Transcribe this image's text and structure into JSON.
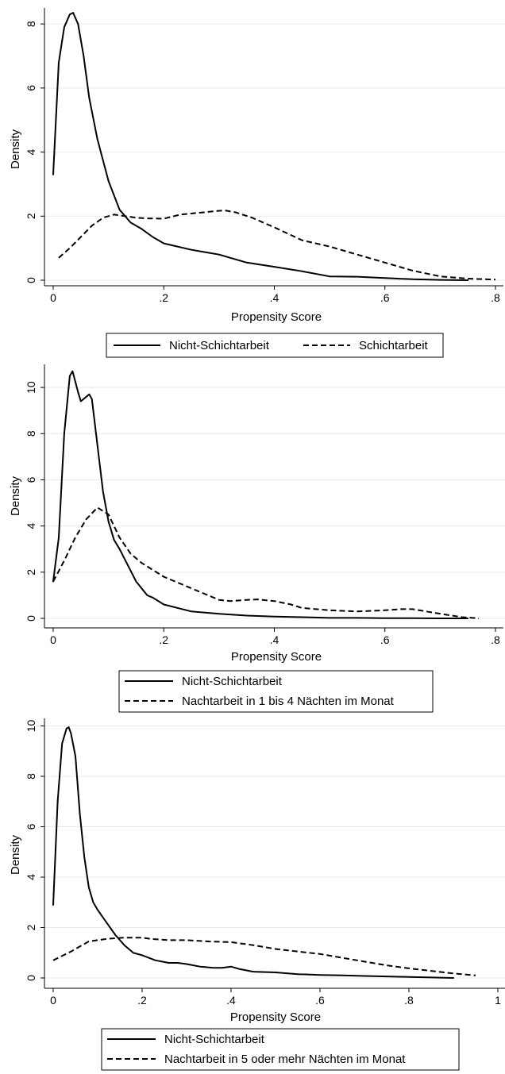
{
  "chart_data": [
    {
      "type": "line",
      "xlabel": "Propensity Score",
      "ylabel": "Density",
      "xlim": [
        0,
        0.8
      ],
      "ylim": [
        0,
        8.5
      ],
      "x_ticks": [
        0,
        0.2,
        0.4,
        0.6,
        0.8
      ],
      "x_tick_labels": [
        "0",
        ".2",
        ".4",
        ".6",
        ".8"
      ],
      "y_ticks": [
        0,
        2,
        4,
        6,
        8
      ],
      "y_tick_labels": [
        "0",
        "2",
        "4",
        "6",
        "8"
      ],
      "grid": true,
      "legend_position": "bottom",
      "legend_layout": "row",
      "series": [
        {
          "name": "Nicht-Schichtarbeit",
          "style": "solid",
          "x": [
            0.0,
            0.01,
            0.02,
            0.03,
            0.036,
            0.045,
            0.055,
            0.065,
            0.08,
            0.1,
            0.12,
            0.14,
            0.16,
            0.18,
            0.2,
            0.25,
            0.3,
            0.35,
            0.4,
            0.45,
            0.5,
            0.55,
            0.6,
            0.65,
            0.7,
            0.75
          ],
          "y": [
            3.3,
            6.8,
            7.9,
            8.3,
            8.35,
            8.0,
            7.0,
            5.7,
            4.4,
            3.1,
            2.2,
            1.8,
            1.6,
            1.35,
            1.15,
            0.95,
            0.8,
            0.55,
            0.42,
            0.28,
            0.12,
            0.11,
            0.07,
            0.03,
            0.01,
            0.0
          ]
        },
        {
          "name": "Schichtarbeit",
          "style": "dashed",
          "x": [
            0.01,
            0.03,
            0.05,
            0.07,
            0.09,
            0.11,
            0.13,
            0.15,
            0.17,
            0.2,
            0.23,
            0.26,
            0.29,
            0.31,
            0.33,
            0.36,
            0.4,
            0.45,
            0.5,
            0.55,
            0.6,
            0.65,
            0.7,
            0.75,
            0.8
          ],
          "y": [
            0.7,
            1.0,
            1.35,
            1.7,
            1.95,
            2.05,
            2.0,
            1.95,
            1.93,
            1.92,
            2.05,
            2.1,
            2.15,
            2.18,
            2.12,
            1.95,
            1.65,
            1.25,
            1.05,
            0.8,
            0.55,
            0.3,
            0.12,
            0.05,
            0.02
          ]
        }
      ]
    },
    {
      "type": "line",
      "xlabel": "Propensity Score",
      "ylabel": "Density",
      "xlim": [
        0,
        0.8
      ],
      "ylim": [
        0,
        11
      ],
      "x_ticks": [
        0,
        0.2,
        0.4,
        0.6,
        0.8
      ],
      "x_tick_labels": [
        "0",
        ".2",
        ".4",
        ".6",
        ".8"
      ],
      "y_ticks": [
        0,
        2,
        4,
        6,
        8,
        10
      ],
      "y_tick_labels": [
        "0",
        "2",
        "4",
        "6",
        "8",
        "10"
      ],
      "grid": true,
      "legend_position": "bottom",
      "legend_layout": "column",
      "series": [
        {
          "name": "Nicht-Schichtarbeit",
          "style": "solid",
          "x": [
            0.0,
            0.01,
            0.02,
            0.03,
            0.035,
            0.045,
            0.05,
            0.055,
            0.065,
            0.07,
            0.08,
            0.09,
            0.1,
            0.11,
            0.12,
            0.135,
            0.15,
            0.16,
            0.17,
            0.18,
            0.2,
            0.25,
            0.3,
            0.35,
            0.4,
            0.45,
            0.5,
            0.55,
            0.6,
            0.65,
            0.7,
            0.75
          ],
          "y": [
            1.6,
            3.5,
            8.0,
            10.5,
            10.7,
            9.8,
            9.4,
            9.5,
            9.7,
            9.5,
            7.5,
            5.5,
            4.2,
            3.4,
            3.0,
            2.3,
            1.6,
            1.3,
            1.0,
            0.9,
            0.6,
            0.3,
            0.2,
            0.12,
            0.08,
            0.05,
            0.02,
            0.02,
            0.01,
            0.01,
            0.0,
            0.0
          ]
        },
        {
          "name": "Nachtarbeit in 1 bis 4 Nächten im Monat",
          "style": "dashed",
          "x": [
            0.0,
            0.02,
            0.04,
            0.06,
            0.08,
            0.1,
            0.12,
            0.14,
            0.16,
            0.18,
            0.2,
            0.25,
            0.3,
            0.32,
            0.35,
            0.37,
            0.4,
            0.43,
            0.45,
            0.5,
            0.55,
            0.6,
            0.63,
            0.65,
            0.7,
            0.74,
            0.77
          ],
          "y": [
            1.6,
            2.5,
            3.5,
            4.3,
            4.8,
            4.5,
            3.5,
            2.8,
            2.4,
            2.1,
            1.8,
            1.3,
            0.8,
            0.75,
            0.8,
            0.82,
            0.75,
            0.6,
            0.45,
            0.35,
            0.3,
            0.35,
            0.4,
            0.4,
            0.2,
            0.05,
            0.0
          ]
        }
      ]
    },
    {
      "type": "line",
      "xlabel": "Propensity Score",
      "ylabel": "Density",
      "xlim": [
        0,
        1
      ],
      "ylim": [
        0,
        10.3
      ],
      "x_ticks": [
        0,
        0.2,
        0.4,
        0.6,
        0.8,
        1
      ],
      "x_tick_labels": [
        "0",
        ".2",
        ".4",
        ".6",
        ".8",
        "1"
      ],
      "y_ticks": [
        0,
        2,
        4,
        6,
        8,
        10
      ],
      "y_tick_labels": [
        "0",
        "2",
        "4",
        "6",
        "8",
        "10"
      ],
      "grid": true,
      "legend_position": "bottom",
      "legend_layout": "column",
      "series": [
        {
          "name": "Nicht-Schichtarbeit",
          "style": "solid",
          "x": [
            0.0,
            0.01,
            0.02,
            0.03,
            0.035,
            0.04,
            0.05,
            0.06,
            0.07,
            0.08,
            0.09,
            0.1,
            0.12,
            0.14,
            0.16,
            0.18,
            0.2,
            0.23,
            0.26,
            0.28,
            0.3,
            0.33,
            0.36,
            0.38,
            0.4,
            0.42,
            0.45,
            0.5,
            0.55,
            0.6,
            0.65,
            0.7,
            0.8,
            0.9
          ],
          "y": [
            2.9,
            7.0,
            9.3,
            9.9,
            9.95,
            9.7,
            8.8,
            6.5,
            4.8,
            3.6,
            3.0,
            2.7,
            2.2,
            1.7,
            1.3,
            1.0,
            0.9,
            0.7,
            0.6,
            0.6,
            0.55,
            0.45,
            0.4,
            0.4,
            0.45,
            0.35,
            0.25,
            0.22,
            0.15,
            0.12,
            0.1,
            0.08,
            0.04,
            0.0
          ]
        },
        {
          "name": "Nachtarbeit in 5 oder mehr Nächten im Monat",
          "style": "dashed",
          "x": [
            0.0,
            0.04,
            0.08,
            0.12,
            0.16,
            0.2,
            0.22,
            0.26,
            0.3,
            0.35,
            0.4,
            0.45,
            0.5,
            0.55,
            0.6,
            0.65,
            0.7,
            0.75,
            0.8,
            0.85,
            0.9,
            0.95
          ],
          "y": [
            0.7,
            1.05,
            1.45,
            1.55,
            1.6,
            1.6,
            1.55,
            1.5,
            1.5,
            1.45,
            1.42,
            1.3,
            1.15,
            1.05,
            0.95,
            0.8,
            0.65,
            0.5,
            0.38,
            0.28,
            0.18,
            0.1
          ]
        }
      ]
    }
  ]
}
